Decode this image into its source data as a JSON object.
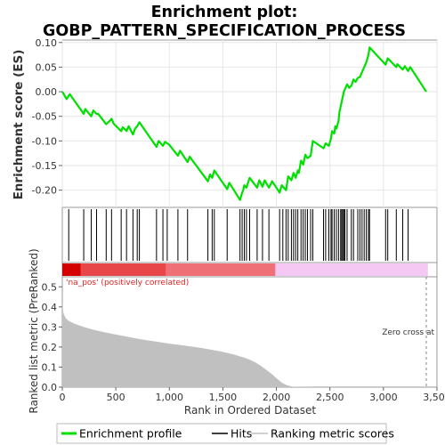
{
  "chart_data": {
    "type": "line",
    "title_line1": "Enrichment plot:",
    "title_line2": "GOBP_PATTERN_SPECIFICATION_PROCESS",
    "es_ylabel": "Enrichment score (ES)",
    "metric_ylabel": "Ranked list metric (PreRanked)",
    "xlabel": "Rank in Ordered Dataset",
    "xlim": [
      0,
      3500
    ],
    "es_ylim": [
      -0.235,
      0.105
    ],
    "metric_ylim": [
      0,
      0.55
    ],
    "x_ticks": [
      0,
      500,
      1000,
      1500,
      2000,
      2500,
      3000,
      3500
    ],
    "x_tick_labels": [
      "0",
      "500",
      "1,000",
      "1,500",
      "2,000",
      "2,500",
      "3,000",
      "3,500"
    ],
    "es_ticks": [
      -0.2,
      -0.15,
      -0.1,
      -0.05,
      0.0,
      0.05,
      0.1
    ],
    "es_tick_labels": [
      "-0.20",
      "-0.15",
      "-0.10",
      "-0.05",
      "0.00",
      "0.05",
      "0.10"
    ],
    "metric_ticks": [
      0.0,
      0.1,
      0.2,
      0.3,
      0.4,
      0.5
    ],
    "metric_tick_labels": [
      "0.0",
      "0.1",
      "0.2",
      "0.3",
      "0.4",
      "0.5"
    ],
    "pos_label": "'na_pos' (positively correlated)",
    "zero_cross_label": "Zero cross at",
    "zero_cross_x": 3400,
    "total_ranks": 3410,
    "series": [
      {
        "name": "Enrichment profile",
        "color": "#00e000",
        "x": [
          0,
          40,
          70,
          200,
          215,
          270,
          290,
          320,
          335,
          410,
          440,
          460,
          480,
          550,
          565,
          600,
          620,
          660,
          680,
          700,
          720,
          880,
          900,
          940,
          960,
          980,
          1000,
          1080,
          1100,
          1170,
          1190,
          1360,
          1380,
          1400,
          1420,
          1540,
          1560,
          1660,
          1680,
          1690,
          1700,
          1720,
          1750,
          1820,
          1840,
          1870,
          1890,
          1930,
          1960,
          2030,
          2050,
          2090,
          2110,
          2140,
          2160,
          2180,
          2200,
          2210,
          2230,
          2250,
          2270,
          2290,
          2320,
          2340,
          2440,
          2460,
          2490,
          2510,
          2520,
          2540,
          2550,
          2560,
          2580,
          2590,
          2600,
          2610,
          2620,
          2630,
          2640,
          2660,
          2680,
          2700,
          2720,
          2740,
          2760,
          2780,
          2800,
          2820,
          2840,
          2860,
          2870,
          3020,
          3040,
          3120,
          3130,
          3180,
          3200,
          3230,
          3250,
          3400
        ],
        "y": [
          0.0,
          -0.015,
          -0.005,
          -0.045,
          -0.035,
          -0.05,
          -0.038,
          -0.045,
          -0.045,
          -0.066,
          -0.06,
          -0.055,
          -0.065,
          -0.08,
          -0.072,
          -0.08,
          -0.07,
          -0.087,
          -0.075,
          -0.07,
          -0.062,
          -0.112,
          -0.1,
          -0.11,
          -0.102,
          -0.105,
          -0.108,
          -0.13,
          -0.12,
          -0.143,
          -0.132,
          -0.182,
          -0.168,
          -0.175,
          -0.16,
          -0.198,
          -0.185,
          -0.22,
          -0.205,
          -0.2,
          -0.19,
          -0.195,
          -0.175,
          -0.195,
          -0.18,
          -0.193,
          -0.18,
          -0.195,
          -0.182,
          -0.205,
          -0.19,
          -0.2,
          -0.172,
          -0.18,
          -0.165,
          -0.175,
          -0.16,
          -0.165,
          -0.14,
          -0.148,
          -0.128,
          -0.135,
          -0.13,
          -0.1,
          -0.115,
          -0.105,
          -0.11,
          -0.095,
          -0.08,
          -0.085,
          -0.07,
          -0.075,
          -0.06,
          -0.04,
          -0.03,
          -0.02,
          -0.01,
          0.0,
          0.005,
          0.015,
          0.008,
          0.012,
          0.025,
          0.02,
          0.028,
          0.03,
          0.04,
          0.05,
          0.06,
          0.075,
          0.09,
          0.055,
          0.068,
          0.05,
          0.056,
          0.045,
          0.052,
          0.042,
          0.05,
          0.0
        ]
      },
      {
        "name": "Hits",
        "color": "#000000",
        "x": [
          60,
          200,
          270,
          320,
          410,
          460,
          550,
          600,
          660,
          700,
          720,
          880,
          940,
          980,
          1080,
          1170,
          1360,
          1400,
          1420,
          1540,
          1660,
          1680,
          1700,
          1720,
          1750,
          1820,
          1870,
          1930,
          2030,
          2060,
          2090,
          2110,
          2140,
          2160,
          2180,
          2200,
          2230,
          2250,
          2270,
          2290,
          2320,
          2340,
          2440,
          2460,
          2490,
          2510,
          2520,
          2540,
          2560,
          2580,
          2600,
          2610,
          2620,
          2630,
          2640,
          2660,
          2700,
          2720,
          2760,
          2780,
          2800,
          2820,
          2840,
          2860,
          2870,
          3020,
          3040,
          3120,
          3180,
          3230
        ]
      },
      {
        "name": "Ranking metric scores",
        "color": "#c0c0c0",
        "x": [
          0,
          10,
          30,
          60,
          120,
          200,
          300,
          400,
          500,
          600,
          700,
          800,
          900,
          1000,
          1100,
          1200,
          1300,
          1400,
          1500,
          1600,
          1700,
          1750,
          1800,
          1850,
          1900,
          1950,
          2000,
          2050,
          2100,
          2150,
          2200,
          2400,
          2800,
          3400
        ],
        "y": [
          0.42,
          0.37,
          0.345,
          0.33,
          0.315,
          0.3,
          0.285,
          0.273,
          0.262,
          0.252,
          0.242,
          0.233,
          0.225,
          0.217,
          0.21,
          0.203,
          0.195,
          0.186,
          0.176,
          0.163,
          0.147,
          0.137,
          0.124,
          0.108,
          0.088,
          0.068,
          0.045,
          0.022,
          0.009,
          0.003,
          0.001,
          0.0,
          0.0,
          0.0
        ]
      }
    ]
  }
}
